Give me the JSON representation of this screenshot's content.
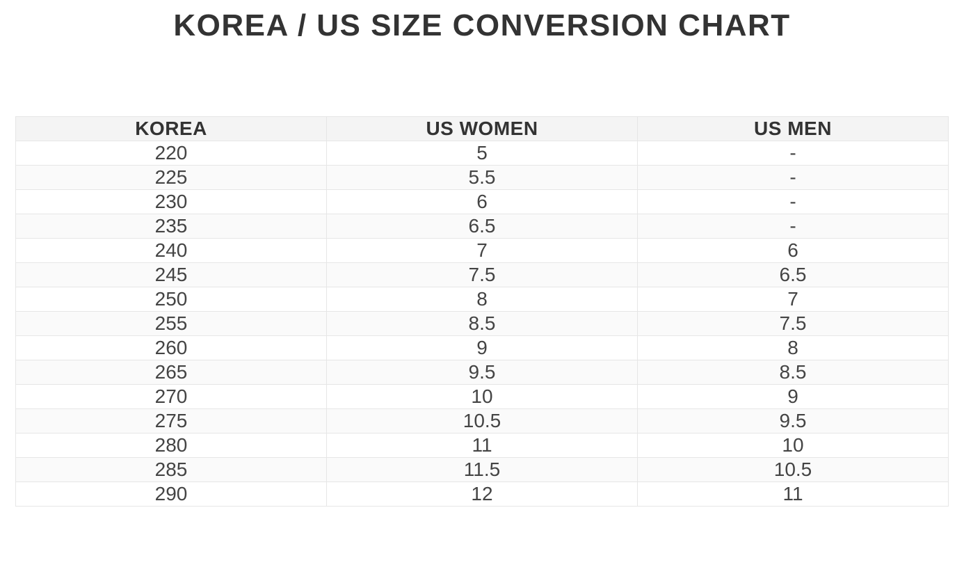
{
  "chart_data": {
    "type": "table",
    "title": "KOREA / US SIZE CONVERSION CHART",
    "columns": [
      "KOREA",
      "US WOMEN",
      "US MEN"
    ],
    "rows": [
      [
        "220",
        "5",
        "-"
      ],
      [
        "225",
        "5.5",
        "-"
      ],
      [
        "230",
        "6",
        "-"
      ],
      [
        "235",
        "6.5",
        "-"
      ],
      [
        "240",
        "7",
        "6"
      ],
      [
        "245",
        "7.5",
        "6.5"
      ],
      [
        "250",
        "8",
        "7"
      ],
      [
        "255",
        "8.5",
        "7.5"
      ],
      [
        "260",
        "9",
        "8"
      ],
      [
        "265",
        "9.5",
        "8.5"
      ],
      [
        "270",
        "10",
        "9"
      ],
      [
        "275",
        "10.5",
        "9.5"
      ],
      [
        "280",
        "11",
        "10"
      ],
      [
        "285",
        "11.5",
        "10.5"
      ],
      [
        "290",
        "12",
        "11"
      ]
    ],
    "layout": {
      "title_position": "top-center",
      "cell_alignment": "center",
      "striped_rows": true
    }
  },
  "colors": {
    "title_text": "#333333",
    "header_text": "#333333",
    "cell_text": "#444444",
    "header_bg": "#f4f4f4",
    "row_alt_bg": "#fafafa",
    "border": "#e6e6e6"
  }
}
